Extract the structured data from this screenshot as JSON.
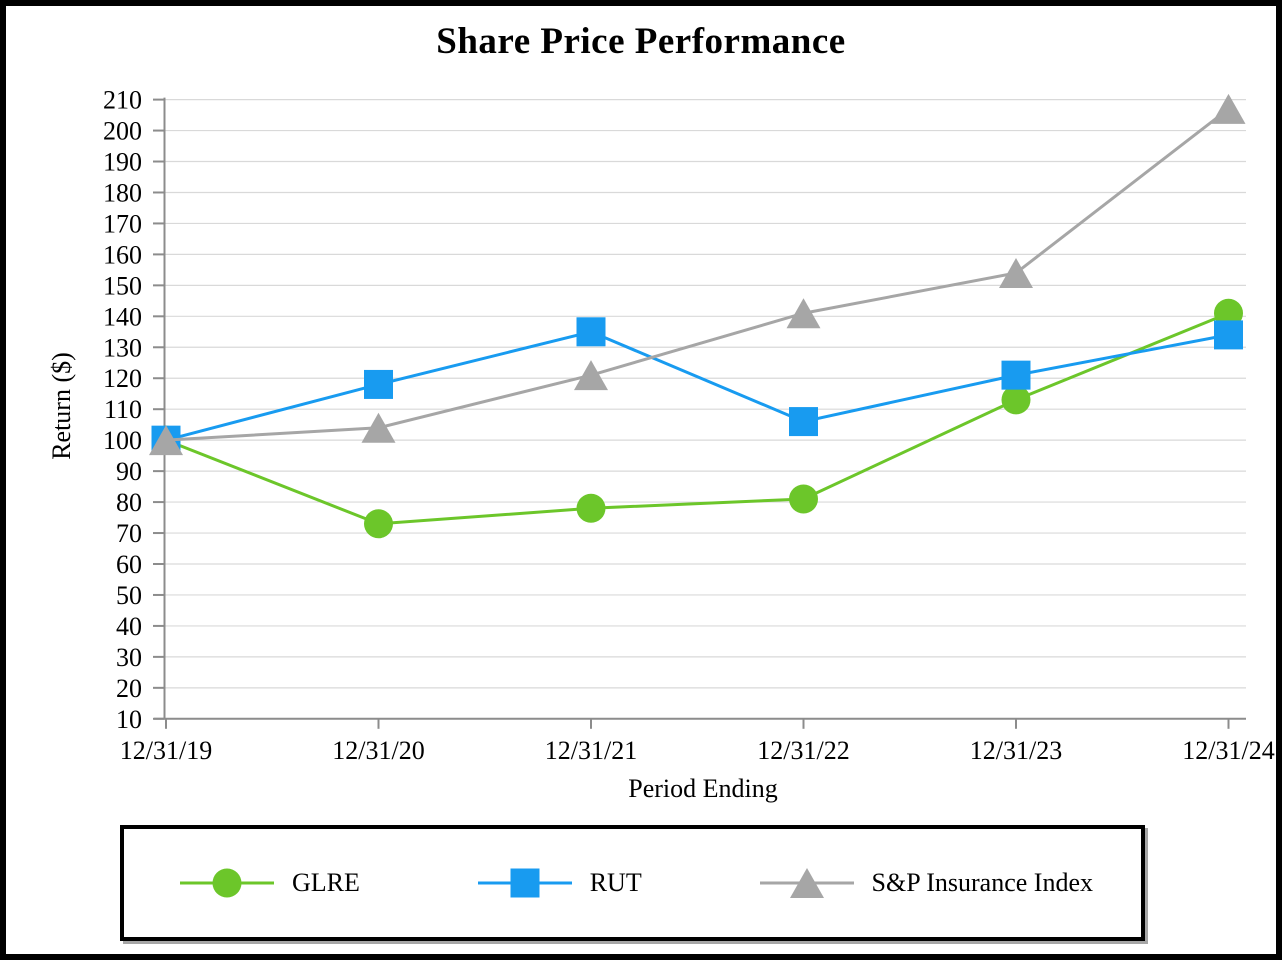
{
  "chart_data": {
    "type": "line",
    "title": "Share Price Performance",
    "xlabel": "Period Ending",
    "ylabel": "Return ($)",
    "categories": [
      "12/31/19",
      "12/31/20",
      "12/31/21",
      "12/31/22",
      "12/31/23",
      "12/31/24"
    ],
    "y_ticks": [
      210,
      200,
      190,
      180,
      170,
      160,
      150,
      140,
      130,
      120,
      110,
      100,
      90,
      80,
      70,
      60,
      50,
      40,
      30,
      20,
      10
    ],
    "ylim": [
      10,
      210
    ],
    "grid": "horizontal",
    "legend_position": "bottom",
    "series": [
      {
        "name": "GLRE",
        "marker": "circle",
        "color": "#6CC62A",
        "values": [
          100,
          73,
          78,
          81,
          113,
          141
        ]
      },
      {
        "name": "RUT",
        "marker": "square",
        "color": "#189BF0",
        "values": [
          100,
          118,
          135,
          106,
          121,
          134
        ]
      },
      {
        "name": "S&P Insurance Index",
        "marker": "triangle",
        "color": "#A6A6A6",
        "values": [
          100,
          104,
          121,
          141,
          154,
          207
        ]
      }
    ],
    "colors": {
      "gridline": "#D9D9D9",
      "axis": "#8C8C8C",
      "text": "#000000"
    }
  }
}
